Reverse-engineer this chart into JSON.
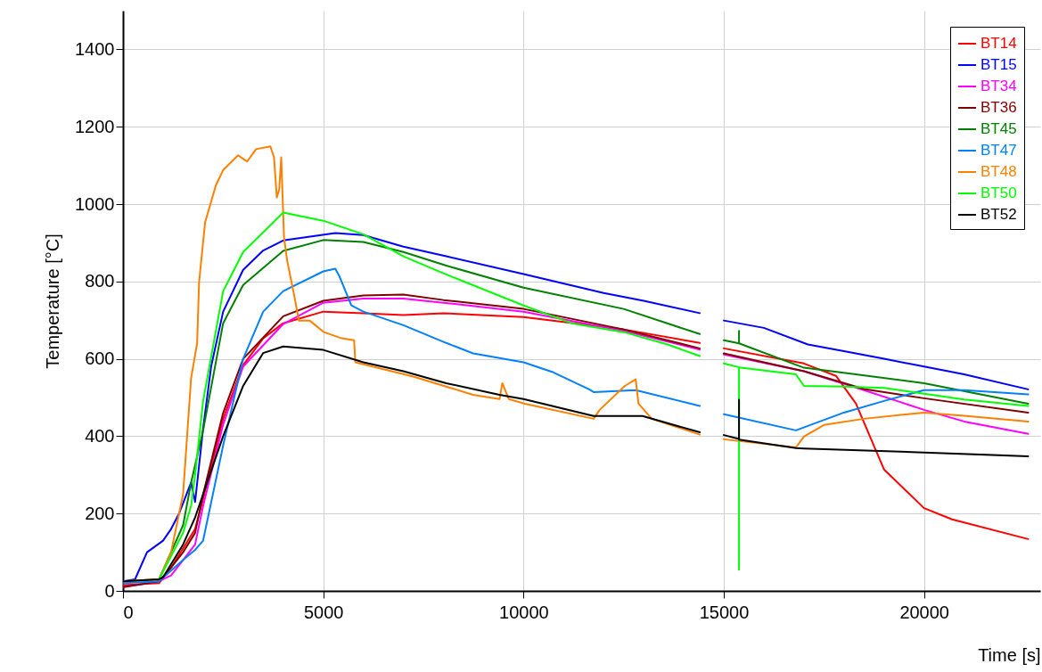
{
  "chart_data": {
    "type": "line",
    "xlabel": "Time [s]",
    "ylabel": "Temperature [°C]",
    "xlim": [
      0,
      22900
    ],
    "ylim": [
      0,
      1500
    ],
    "xticks": [
      0,
      5000,
      10000,
      15000,
      20000
    ],
    "yticks": [
      0,
      200,
      400,
      600,
      800,
      1000,
      1200,
      1400
    ],
    "grid": true,
    "legend": "top right",
    "line_style": "solid",
    "series": [
      {
        "name": "BT14",
        "color": "#ff0000",
        "x": [
          0,
          900,
          1200,
          1500,
          1800,
          2000,
          2500,
          3000,
          3500,
          4000,
          5000,
          6000,
          7000,
          8000,
          10000,
          12500,
          14400,
          14700,
          15000,
          17000,
          17800,
          18300,
          19000,
          20000,
          20700,
          22600
        ],
        "values": [
          15,
          20,
          60,
          110,
          160,
          238,
          445,
          584,
          653,
          692,
          722,
          718,
          713,
          718,
          708,
          676,
          641,
          null,
          627,
          588,
          556,
          484,
          314,
          214,
          185,
          134
        ]
      },
      {
        "name": "BT15",
        "color": "#0000ff",
        "x": [
          0,
          300,
          600,
          1000,
          1200,
          1400,
          1700,
          1800,
          2000,
          2200,
          2500,
          3000,
          3500,
          4000,
          5300,
          6000,
          7000,
          8070,
          10000,
          12000,
          13000,
          14400,
          14700,
          15000,
          16000,
          17100,
          18000,
          19000,
          20000,
          21000,
          22600
        ],
        "values": [
          25,
          30,
          100,
          130,
          160,
          200,
          280,
          230,
          420,
          580,
          722,
          830,
          880,
          906,
          925,
          920,
          890,
          865,
          819,
          770,
          750,
          718,
          null,
          699,
          680,
          637,
          620,
          600,
          580,
          560,
          521
        ]
      },
      {
        "name": "BT34",
        "color": "#ff00ff",
        "x": [
          0,
          900,
          1200,
          1500,
          1800,
          2000,
          2500,
          3000,
          4000,
          5000,
          6000,
          7000,
          8000,
          10000,
          12500,
          14400,
          14700,
          15000,
          17000,
          18500,
          20000,
          21000,
          22600
        ],
        "values": [
          10,
          25,
          40,
          80,
          120,
          220,
          430,
          580,
          690,
          745,
          756,
          756,
          745,
          722,
          672,
          624,
          null,
          611,
          568,
          519,
          468,
          438,
          406
        ]
      },
      {
        "name": "BT36",
        "color": "#800000",
        "x": [
          0,
          900,
          1200,
          1500,
          1800,
          2000,
          2500,
          3000,
          4000,
          5000,
          6000,
          7000,
          8000,
          10000,
          12500,
          14400,
          14700,
          15000,
          17000,
          18500,
          20000,
          22600
        ],
        "values": [
          10,
          25,
          60,
          100,
          150,
          250,
          460,
          600,
          710,
          750,
          764,
          766,
          752,
          729,
          676,
          627,
          null,
          614,
          568,
          522,
          498,
          461
        ]
      },
      {
        "name": "BT45",
        "color": "#008000",
        "x": [
          0,
          900,
          1200,
          1500,
          1700,
          2000,
          2500,
          3000,
          4000,
          5000,
          6000,
          7000,
          8070,
          10000,
          12500,
          14400,
          14700,
          15000,
          15380,
          15380,
          15380,
          17000,
          20000,
          22600
        ],
        "values": [
          25,
          30,
          100,
          170,
          280,
          415,
          692,
          791,
          879,
          907,
          902,
          876,
          841,
          784,
          729,
          664,
          null,
          648,
          640,
          672,
          640,
          577,
          537,
          484
        ]
      },
      {
        "name": "BT47",
        "color": "#0080ff",
        "x": [
          0,
          900,
          1500,
          1800,
          2000,
          2500,
          3000,
          3500,
          4000,
          5000,
          5300,
          5400,
          5700,
          6000,
          7000,
          8070,
          8740,
          10000,
          10745,
          11640,
          11750,
          12800,
          14400,
          14700,
          15000,
          16800,
          18000,
          19000,
          20000,
          21000,
          22600
        ],
        "values": [
          20,
          25,
          80,
          106,
          130,
          376,
          600,
          722,
          775,
          826,
          833,
          814,
          738,
          722,
          687,
          641,
          614,
          591,
          565,
          521,
          514,
          519,
          478,
          null,
          457,
          415,
          461,
          491,
          519,
          519,
          508
        ]
      },
      {
        "name": "BT48",
        "color": "#ff8000",
        "x": [
          0,
          900,
          1200,
          1500,
          1600,
          1700,
          1850,
          1900,
          2050,
          2320,
          2500,
          2875,
          3100,
          3320,
          3680,
          3770,
          3840,
          3900,
          3950,
          4020,
          4100,
          4280,
          4390,
          4660,
          5015,
          5460,
          5770,
          5800,
          7245,
          8740,
          9400,
          9470,
          9630,
          10031,
          11750,
          11900,
          12530,
          12800,
          12870,
          13200,
          14400,
          14700,
          15000,
          16800,
          17000,
          17500,
          18500,
          20000,
          21000,
          22600
        ],
        "values": [
          25,
          30,
          100,
          250,
          400,
          550,
          640,
          799,
          953,
          1049,
          1088,
          1126,
          1110,
          1142,
          1149,
          1121,
          1017,
          1038,
          1121,
          914,
          853,
          761,
          699,
          699,
          669,
          653,
          648,
          591,
          554,
          507,
          496,
          537,
          496,
          484,
          445,
          468,
          530,
          547,
          484,
          445,
          404,
          null,
          392,
          371,
          399,
          429,
          445,
          461,
          453,
          438
        ]
      },
      {
        "name": "BT50",
        "color": "#00ff00",
        "x": [
          900,
          1200,
          1500,
          1700,
          1800,
          2000,
          2500,
          3000,
          4000,
          5000,
          6000,
          7000,
          8000,
          10000,
          11200,
          12500,
          13600,
          14400,
          14700,
          15000,
          15380,
          15380,
          15380,
          16800,
          17000,
          18000,
          19000,
          20000,
          21000,
          22600
        ],
        "values": [
          30,
          90,
          150,
          220,
          300,
          491,
          775,
          876,
          978,
          957,
          922,
          865,
          821,
          738,
          692,
          669,
          637,
          607,
          null,
          588,
          578,
          55,
          578,
          560,
          530,
          528,
          525,
          510,
          495,
          478
        ]
      },
      {
        "name": "BT52",
        "color": "#000000",
        "x": [
          0,
          900,
          1000,
          1500,
          1800,
          2000,
          2500,
          3000,
          3500,
          4000,
          5000,
          6000,
          7000,
          8070,
          9400,
          10000,
          11750,
          12970,
          14400,
          14700,
          15000,
          15380,
          15380,
          15380,
          16800,
          17000,
          20000,
          22600
        ],
        "values": [
          25,
          30,
          35,
          120,
          190,
          250,
          400,
          530,
          615,
          632,
          623,
          591,
          568,
          537,
          507,
          496,
          452,
          452,
          410,
          null,
          403,
          393,
          494,
          391,
          369,
          368,
          358,
          348
        ]
      }
    ]
  }
}
